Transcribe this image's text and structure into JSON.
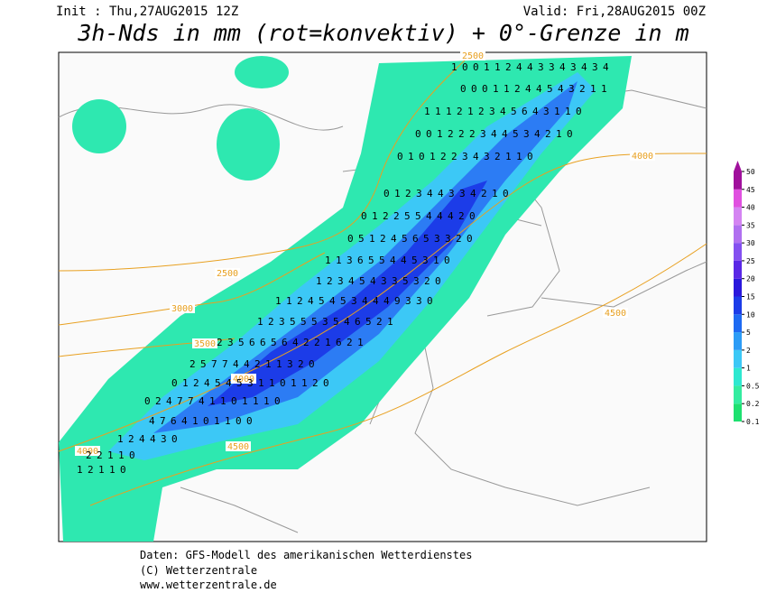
{
  "header": {
    "init": "Init : Thu,27AUG2015 12Z",
    "valid": "Valid: Fri,28AUG2015 00Z",
    "title": "3h-Nds in mm (rot=konvektiv) + 0°-Grenze in m"
  },
  "contour_labels": [
    "2500",
    "2500",
    "3000",
    "3500",
    "4000",
    "4000",
    "4000",
    "4500",
    "4500"
  ],
  "grid_rows": [
    [
      1,
      0,
      0,
      1,
      1,
      2,
      4,
      4,
      3,
      3,
      4,
      3,
      4,
      3,
      4
    ],
    [
      0,
      0,
      0,
      1,
      1,
      2,
      4,
      4,
      5,
      4,
      3,
      2,
      1,
      1
    ],
    [
      1,
      1,
      1,
      2,
      1,
      2,
      3,
      4,
      5,
      6,
      4,
      3,
      1,
      1,
      0
    ],
    [
      0,
      0,
      1,
      2,
      2,
      2,
      3,
      4,
      4,
      5,
      3,
      4,
      2,
      1,
      0
    ],
    [
      0,
      1,
      0,
      1,
      2,
      2,
      3,
      4,
      3,
      2,
      1,
      1,
      0
    ],
    [
      0,
      1,
      2,
      3,
      4,
      4,
      3,
      3,
      4,
      2,
      1,
      0
    ],
    [
      0,
      1,
      2,
      2,
      5,
      5,
      4,
      4,
      4,
      2,
      0
    ],
    [
      0,
      5,
      1,
      2,
      4,
      5,
      6,
      5,
      3,
      3,
      2,
      0
    ],
    [
      1,
      1,
      3,
      6,
      5,
      5,
      4,
      4,
      5,
      3,
      1,
      0
    ],
    [
      1,
      2,
      3,
      4,
      5,
      4,
      3,
      3,
      5,
      3,
      2,
      0
    ],
    [
      1,
      1,
      2,
      4,
      5,
      4,
      5,
      3,
      4,
      4,
      4,
      9,
      3,
      3,
      0
    ],
    [
      1,
      2,
      3,
      5,
      5,
      5,
      3,
      5,
      4,
      6,
      5,
      2,
      1
    ],
    [
      2,
      3,
      5,
      6,
      6,
      5,
      6,
      4,
      2,
      2,
      1,
      6,
      2,
      1
    ],
    [
      2,
      5,
      7,
      7,
      4,
      4,
      2,
      1,
      1,
      3,
      2,
      0
    ],
    [
      0,
      1,
      2,
      4,
      5,
      4,
      5,
      3,
      1,
      1,
      0,
      1,
      1,
      2,
      0
    ],
    [
      0,
      2,
      4,
      7,
      7,
      4,
      1,
      1,
      0,
      1,
      1,
      1,
      0
    ],
    [
      4,
      7,
      6,
      4,
      1,
      0,
      1,
      1,
      0,
      0
    ],
    [
      1,
      2,
      4,
      4,
      3,
      0
    ],
    [
      2,
      2,
      1,
      1,
      0
    ],
    [
      1,
      2,
      1,
      1,
      0
    ]
  ],
  "colorbar": {
    "levels": [
      0.1,
      0.2,
      0.5,
      1,
      2,
      5,
      10,
      15,
      20,
      25,
      30,
      35,
      40,
      45,
      50
    ],
    "colors": [
      "#1ee070",
      "#34eca0",
      "#2ee8d0",
      "#3cc8f6",
      "#2c9cf6",
      "#1e6af2",
      "#1c3ce8",
      "#2a18dc",
      "#5a28e6",
      "#8450f0",
      "#b070f0",
      "#d484f2",
      "#e050e0",
      "#a0109c"
    ]
  },
  "footer": [
    "Daten: GFS-Modell des amerikanischen Wetterdienstes",
    "(C) Wetterzentrale",
    "www.wetterzentrale.de"
  ]
}
